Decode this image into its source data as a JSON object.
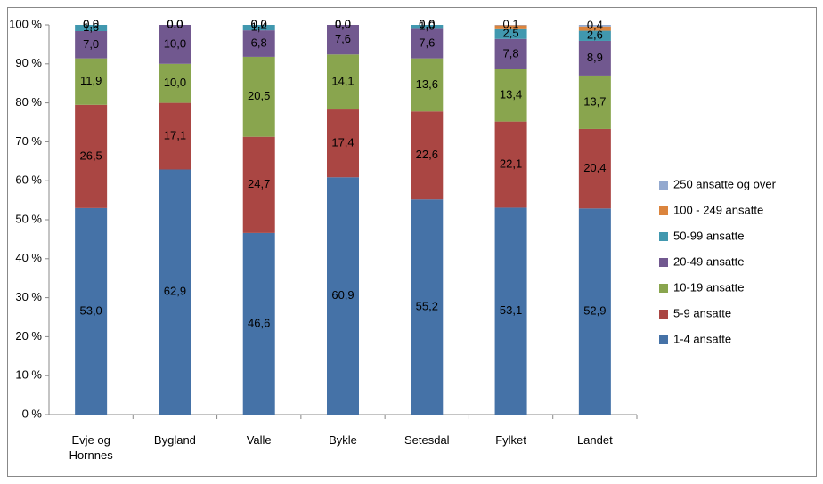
{
  "chart_data": {
    "type": "stacked_bar",
    "categories": [
      "Evje og Hornnes",
      "Bygland",
      "Valle",
      "Bykle",
      "Setesdal",
      "Fylket",
      "Landet"
    ],
    "series": [
      {
        "name": "1-4 ansatte",
        "color": "#4572a7",
        "values": [
          53.0,
          62.9,
          46.6,
          60.9,
          55.2,
          53.1,
          52.9
        ],
        "value_labels": [
          "53,0",
          "62,9",
          "46,6",
          "60,9",
          "55,2",
          "53,1",
          "52,9"
        ]
      },
      {
        "name": "5-9 ansatte",
        "color": "#aa4643",
        "values": [
          26.5,
          17.1,
          24.7,
          17.4,
          22.6,
          22.1,
          20.4
        ],
        "value_labels": [
          "26,5",
          "17,1",
          "24,7",
          "17,4",
          "22,6",
          "22,1",
          "20,4"
        ]
      },
      {
        "name": "10-19 ansatte",
        "color": "#89a54e",
        "values": [
          11.9,
          10.0,
          20.5,
          14.1,
          13.6,
          13.4,
          13.7
        ],
        "value_labels": [
          "11,9",
          "10,0",
          "20,5",
          "14,1",
          "13,6",
          "13,4",
          "13,7"
        ]
      },
      {
        "name": "20-49 ansatte",
        "color": "#71588f",
        "values": [
          7.0,
          10.0,
          6.8,
          7.6,
          7.6,
          7.8,
          8.9
        ],
        "value_labels": [
          "7,0",
          "10,0",
          "6,8",
          "7,6",
          "7,6",
          "7,8",
          "8,9"
        ]
      },
      {
        "name": "50-99 ansatte",
        "color": "#4198af",
        "values": [
          1.6,
          0.0,
          1.4,
          0.0,
          1.0,
          2.5,
          2.6
        ],
        "value_labels": [
          "1,6",
          "0,0",
          "1,4",
          "0,0",
          "1,0",
          "2,5",
          "2,6"
        ]
      },
      {
        "name": "100 - 249 ansatte",
        "color": "#db843d",
        "values": [
          0.0,
          0.0,
          0.0,
          0.0,
          0.0,
          1.0,
          1.1
        ],
        "value_labels": [
          "0,0",
          "0,0",
          "0,0",
          "0,0",
          "0,0",
          null,
          null
        ]
      },
      {
        "name": "250 ansatte og over",
        "color": "#93a9cf",
        "values": [
          0.0,
          0.0,
          0.0,
          0.0,
          0.0,
          0.1,
          0.4
        ],
        "value_labels": [
          "0,0",
          "0,0",
          "0,0",
          "0,0",
          "0,0",
          "0,1",
          "0,4"
        ]
      }
    ],
    "ylim": [
      0,
      100
    ],
    "yticks": [
      {
        "value": 0,
        "label": "0 %"
      },
      {
        "value": 10,
        "label": "10 %"
      },
      {
        "value": 20,
        "label": "20 %"
      },
      {
        "value": 30,
        "label": "30 %"
      },
      {
        "value": 40,
        "label": "40 %"
      },
      {
        "value": 50,
        "label": "50 %"
      },
      {
        "value": 60,
        "label": "60 %"
      },
      {
        "value": 70,
        "label": "70 %"
      },
      {
        "value": 80,
        "label": "80 %"
      },
      {
        "value": 90,
        "label": "90 %"
      },
      {
        "value": 100,
        "label": "100 %"
      }
    ],
    "legend": "right"
  }
}
